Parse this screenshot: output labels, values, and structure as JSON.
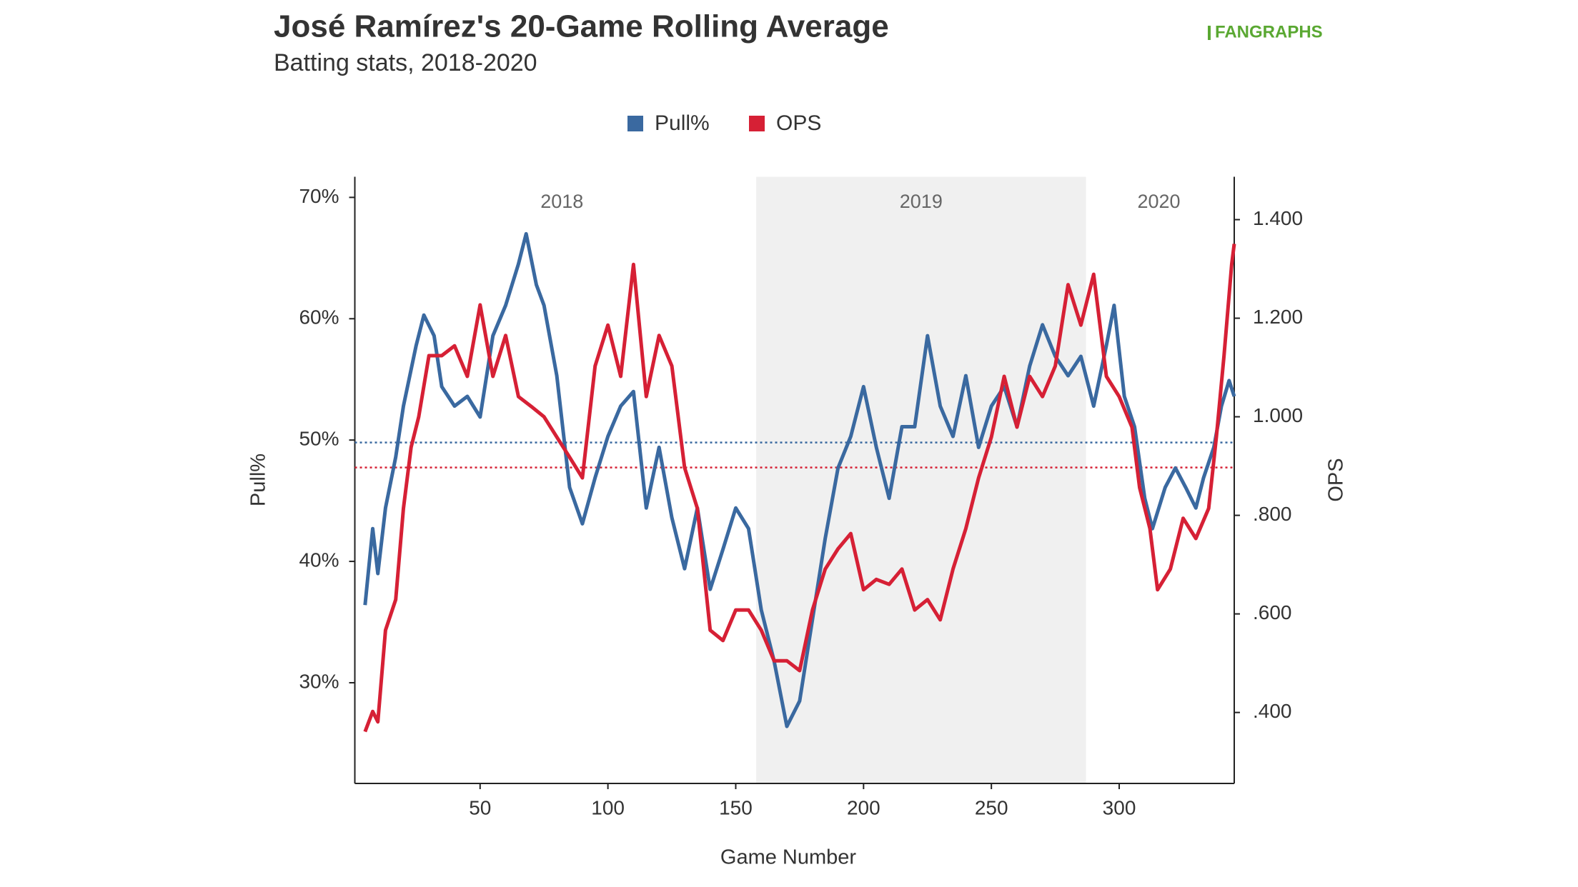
{
  "chart_data": {
    "type": "line",
    "title": "José Ramírez's 20-Game Rolling Average",
    "subtitle": "Batting stats, 2018-2020",
    "source": "FANGRAPHS",
    "xlabel": "Game Number",
    "ylabel": "Pull%",
    "y2label": "OPS",
    "xlim": [
      1,
      345
    ],
    "xticks": [
      50,
      100,
      150,
      200,
      250,
      300
    ],
    "ylim": [
      21.7,
      71.7
    ],
    "yticks": [
      {
        "value": 30,
        "label": "30%"
      },
      {
        "value": 40,
        "label": "40%"
      },
      {
        "value": 50,
        "label": "50%"
      },
      {
        "value": 60,
        "label": "60%"
      },
      {
        "value": 70,
        "label": "70%"
      }
    ],
    "y2lim": [
      0.256,
      1.487
    ],
    "y2ticks": [
      {
        "value": 0.4,
        "label": ".400"
      },
      {
        "value": 0.6,
        "label": ".600"
      },
      {
        "value": 0.8,
        "label": ".800"
      },
      {
        "value": 1.0,
        "label": "1.000"
      },
      {
        "value": 1.2,
        "label": "1.200"
      },
      {
        "value": 1.4,
        "label": "1.400"
      }
    ],
    "legend": "top",
    "shaded_span": [
      158,
      287
    ],
    "annotations": [
      {
        "text": "2018",
        "x": 82
      },
      {
        "text": "2019",
        "x": 222.5
      },
      {
        "text": "2020",
        "x": 315.5
      }
    ],
    "reference_lines": [
      {
        "value": 49.8,
        "axis": "y",
        "color": "#3a69a0"
      },
      {
        "value": 0.897,
        "axis": "y2",
        "color": "#d62035"
      }
    ],
    "series": [
      {
        "name": "Pull%",
        "color": "#3a69a0",
        "axis": "y",
        "x": [
          5,
          8,
          10,
          13,
          17,
          20,
          25,
          28,
          32,
          35,
          40,
          45,
          50,
          55,
          60,
          65,
          68,
          72,
          75,
          80,
          85,
          90,
          95,
          100,
          105,
          110,
          115,
          120,
          125,
          130,
          135,
          140,
          145,
          150,
          155,
          160,
          165,
          170,
          175,
          180,
          185,
          190,
          195,
          200,
          205,
          210,
          215,
          220,
          225,
          230,
          235,
          240,
          245,
          250,
          255,
          260,
          265,
          270,
          275,
          280,
          285,
          290,
          295,
          298,
          302,
          306,
          310,
          313,
          318,
          322,
          326,
          330,
          333,
          337,
          340,
          343,
          345
        ],
        "values": [
          36.4,
          42.7,
          39,
          44.4,
          48.6,
          52.8,
          57.8,
          60.3,
          58.6,
          54.4,
          52.8,
          53.6,
          51.9,
          58.6,
          61.1,
          64.5,
          67,
          62.8,
          61.1,
          55.3,
          46.1,
          43.1,
          46.9,
          50.3,
          52.8,
          54,
          44.4,
          49.4,
          43.6,
          39.4,
          44.4,
          37.7,
          41,
          44.4,
          42.7,
          36,
          31.8,
          26.4,
          28.5,
          35.2,
          41.9,
          47.7,
          50.3,
          54.4,
          49.4,
          45.2,
          51.1,
          51.1,
          58.6,
          52.8,
          50.3,
          55.3,
          49.4,
          52.8,
          54.4,
          51.1,
          56.1,
          59.5,
          56.9,
          55.3,
          56.9,
          52.8,
          57.8,
          61.1,
          53.6,
          51.1,
          45.2,
          42.7,
          46.1,
          47.7,
          46.1,
          44.4,
          46.9,
          49.4,
          52.8,
          54.9,
          53.6
        ]
      },
      {
        "name": "OPS",
        "color": "#d62035",
        "axis": "y2",
        "x": [
          5,
          8,
          10,
          13,
          17,
          20,
          23,
          26,
          30,
          35,
          40,
          45,
          50,
          55,
          60,
          65,
          70,
          75,
          80,
          85,
          90,
          95,
          100,
          105,
          110,
          115,
          120,
          125,
          130,
          135,
          140,
          145,
          150,
          155,
          160,
          165,
          170,
          175,
          180,
          185,
          190,
          195,
          200,
          205,
          210,
          215,
          220,
          225,
          230,
          235,
          240,
          245,
          250,
          255,
          260,
          265,
          270,
          275,
          280,
          285,
          290,
          295,
          300,
          305,
          308,
          312,
          315,
          320,
          325,
          330,
          335,
          338,
          341,
          344,
          345
        ],
        "values": [
          0.361,
          0.402,
          0.381,
          0.567,
          0.629,
          0.814,
          0.938,
          1.0,
          1.124,
          1.124,
          1.144,
          1.082,
          1.227,
          1.082,
          1.165,
          1.041,
          1.021,
          1.0,
          0.959,
          0.918,
          0.876,
          1.103,
          1.186,
          1.082,
          1.309,
          1.041,
          1.165,
          1.103,
          0.897,
          0.814,
          0.567,
          0.546,
          0.608,
          0.608,
          0.567,
          0.505,
          0.505,
          0.485,
          0.608,
          0.691,
          0.732,
          0.763,
          0.649,
          0.67,
          0.66,
          0.691,
          0.608,
          0.629,
          0.588,
          0.691,
          0.773,
          0.876,
          0.959,
          1.082,
          0.979,
          1.082,
          1.041,
          1.103,
          1.268,
          1.186,
          1.289,
          1.082,
          1.041,
          0.979,
          0.856,
          0.773,
          0.649,
          0.691,
          0.794,
          0.753,
          0.814,
          0.959,
          1.124,
          1.309,
          1.351
        ]
      }
    ]
  }
}
